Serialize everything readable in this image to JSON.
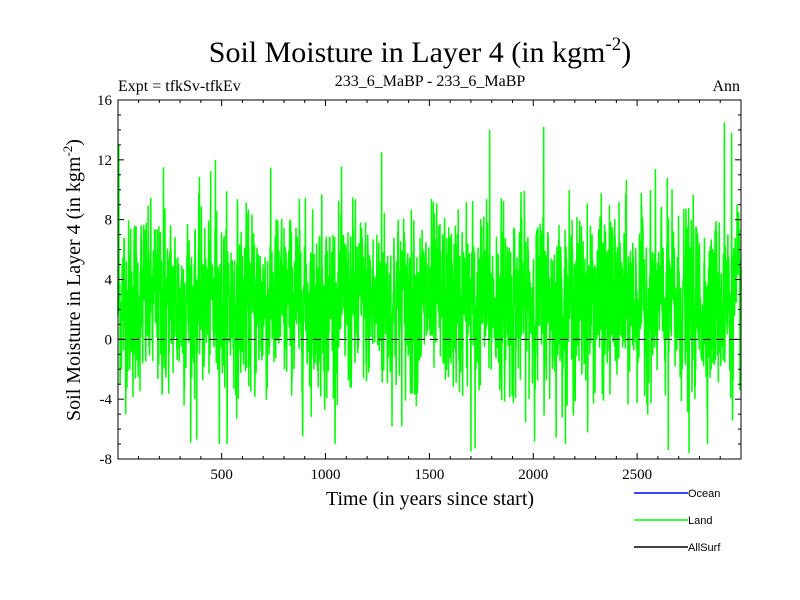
{
  "chart_data": {
    "type": "line",
    "title_main": "Soil Moisture in Layer 4 (in kgm",
    "title_sup": "-2",
    "title_close": ")",
    "subtitle_left": "Expt = tfkSv-tfkEv",
    "subtitle_center": "233_6_MaBP - 233_6_MaBP",
    "subtitle_right": "Ann",
    "xlabel": "Time (in years since start)",
    "ylabel_main": "Soil Moisture in Layer 4 (in kgm",
    "ylabel_sup": "-2",
    "ylabel_close": ")",
    "xlim": [
      1,
      3000
    ],
    "ylim": [
      -8,
      16
    ],
    "xticks": [
      500,
      1000,
      1500,
      2000,
      2500
    ],
    "xtick_labels": [
      "500",
      "1000",
      "1500",
      "2000",
      "2500"
    ],
    "yticks": [
      -8,
      -4,
      0,
      4,
      8,
      12,
      16
    ],
    "ytick_labels": [
      "-8",
      "-4",
      "0",
      "4",
      "8",
      "12",
      "16"
    ],
    "zero_line": 0,
    "series": [
      {
        "name": "Ocean",
        "color": "#0000ff",
        "values": []
      },
      {
        "name": "Land",
        "color": "#00ff00",
        "note": "annual values, ~3000 years; mean about 2.5, range about -7.5 to 14.5",
        "generator": {
          "n": 3000,
          "mean": 2.5,
          "sd": 2.9,
          "seed": 12345
        },
        "peaks": [
          {
            "x": 5,
            "y": 13.0
          },
          {
            "x": 220,
            "y": 11.5
          },
          {
            "x": 380,
            "y": -6.7
          },
          {
            "x": 470,
            "y": 12.0
          },
          {
            "x": 1270,
            "y": 12.5
          },
          {
            "x": 1700,
            "y": -7.5
          },
          {
            "x": 1720,
            "y": -7.3
          },
          {
            "x": 1790,
            "y": 14.0
          },
          {
            "x": 2050,
            "y": 14.2
          },
          {
            "x": 2650,
            "y": -7.4
          },
          {
            "x": 2750,
            "y": -7.6
          },
          {
            "x": 2920,
            "y": 14.5
          },
          {
            "x": 2955,
            "y": 13.8
          }
        ]
      },
      {
        "name": "AllSurf",
        "color": "#000000",
        "values": []
      }
    ],
    "legend": [
      {
        "label": "Ocean",
        "color": "#0000ff"
      },
      {
        "label": "Land",
        "color": "#00ff00"
      },
      {
        "label": "AllSurf",
        "color": "#000000"
      }
    ]
  }
}
